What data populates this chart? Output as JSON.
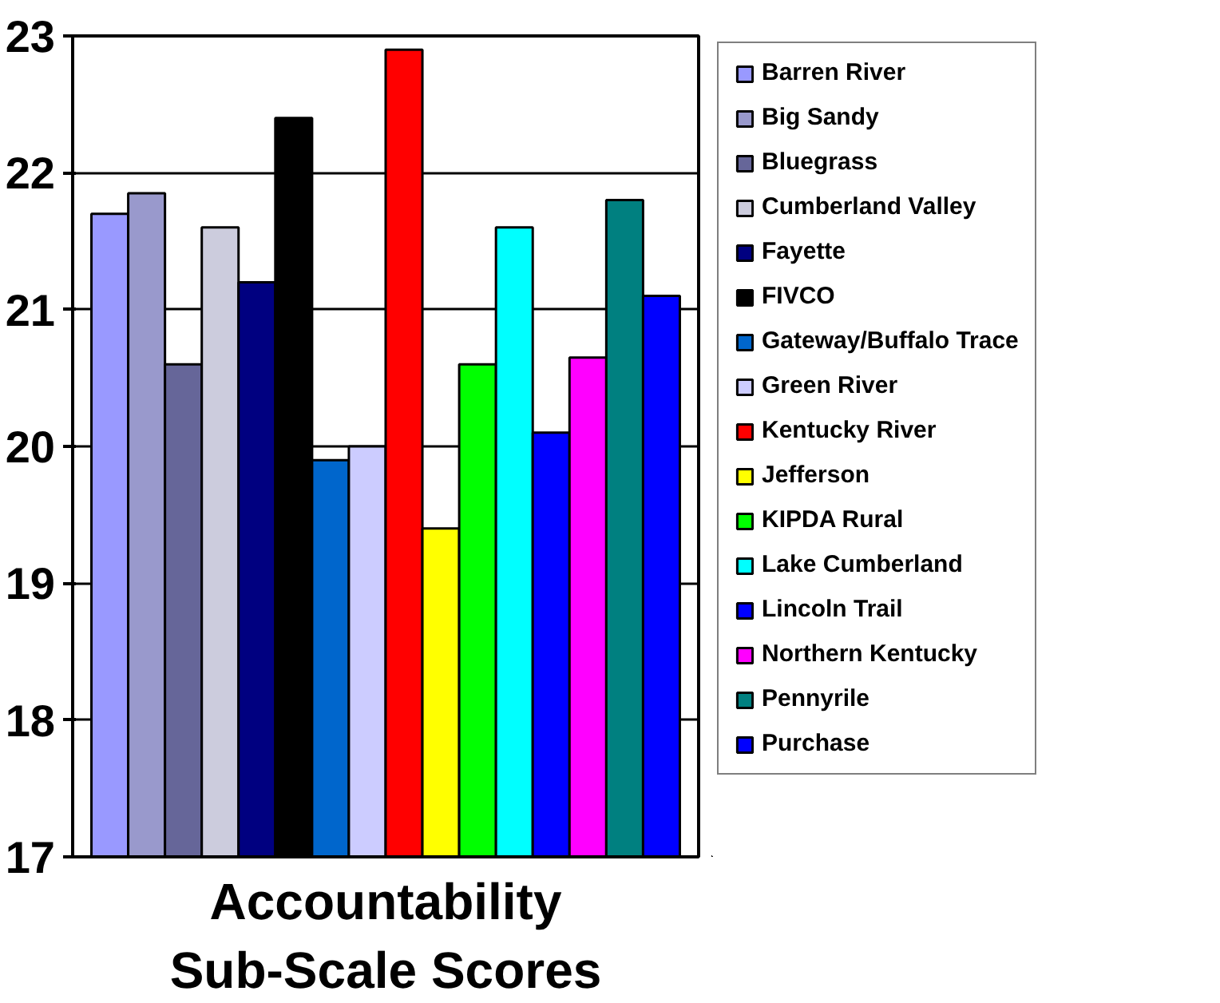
{
  "chart_data": {
    "type": "bar",
    "xlabel": "Accountability Sub-Scale Scores",
    "categories": [
      null
    ],
    "series": [
      {
        "name": "Barren River",
        "color": "#9999ff",
        "values": [
          21.7
        ]
      },
      {
        "name": "Big Sandy",
        "color": "#9999cc",
        "values": [
          21.85
        ]
      },
      {
        "name": "Bluegrass",
        "color": "#666699",
        "values": [
          20.6
        ]
      },
      {
        "name": "Cumberland Valley",
        "color": "#ccccdd",
        "values": [
          21.6
        ]
      },
      {
        "name": "Fayette",
        "color": "#000080",
        "values": [
          21.2
        ]
      },
      {
        "name": "FIVCO",
        "color": "#000000",
        "values": [
          22.4
        ]
      },
      {
        "name": "Gateway/Buffalo Trace",
        "color": "#0066cc",
        "values": [
          19.9
        ]
      },
      {
        "name": "Green River",
        "color": "#ccccff",
        "values": [
          20.0
        ]
      },
      {
        "name": "Kentucky River",
        "color": "#ff0000",
        "values": [
          22.9
        ]
      },
      {
        "name": "Jefferson",
        "color": "#ffff00",
        "values": [
          19.4
        ]
      },
      {
        "name": "KIPDA Rural",
        "color": "#00ff00",
        "values": [
          20.6
        ]
      },
      {
        "name": "Lake Cumberland",
        "color": "#00ffff",
        "values": [
          21.6
        ]
      },
      {
        "name": "Lincoln Trail",
        "color": "#0000ff",
        "values": [
          20.1
        ]
      },
      {
        "name": "Northern Kentucky",
        "color": "#ff00ff",
        "values": [
          20.65
        ]
      },
      {
        "name": "Pennyrile",
        "color": "#008080",
        "values": [
          21.8
        ]
      },
      {
        "name": "Purchase",
        "color": "#0000ff",
        "values": [
          21.1
        ]
      }
    ],
    "ylim": [
      17,
      23
    ],
    "yticks": [
      17,
      18,
      19,
      20,
      21,
      22,
      23
    ],
    "grid": "y",
    "legend": "right",
    "tick_labels": "y"
  }
}
